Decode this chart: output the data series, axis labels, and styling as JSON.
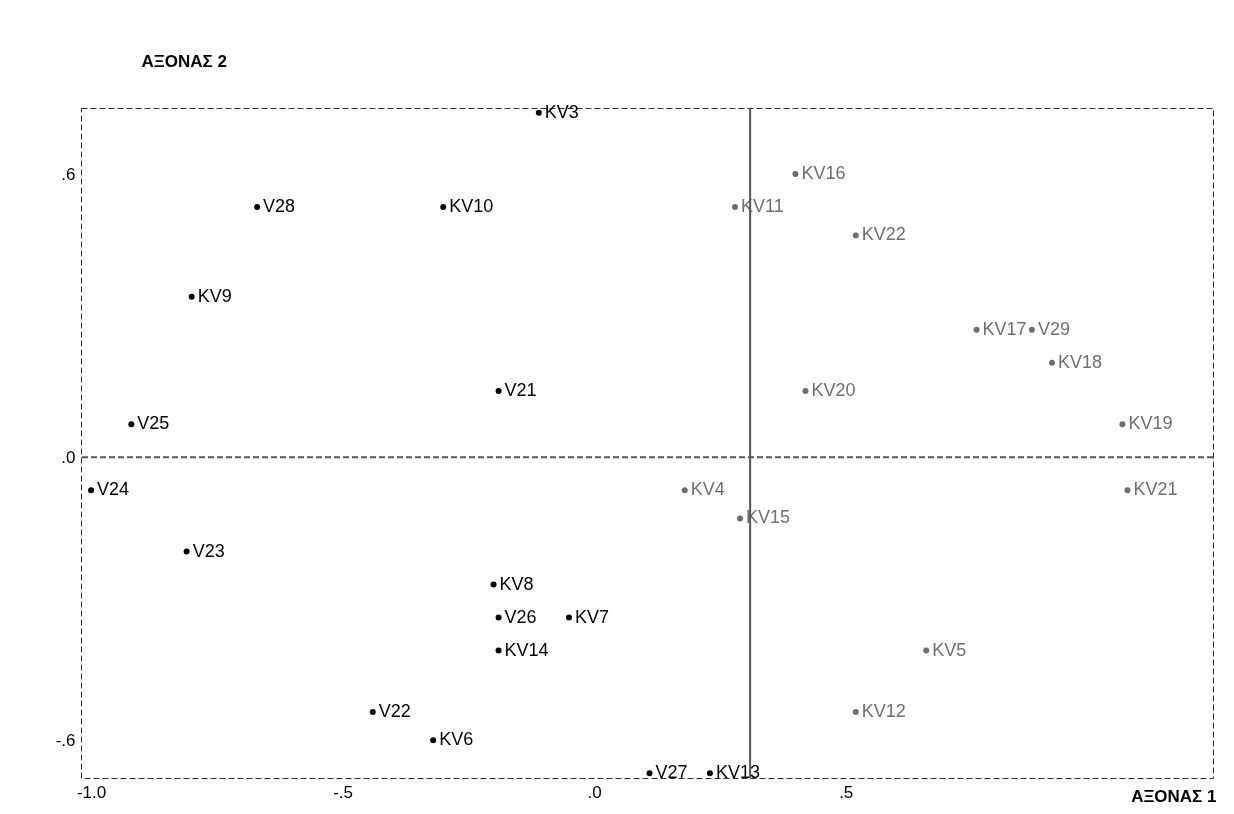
{
  "chart_data": {
    "type": "scatter",
    "xlabel": "ΑΞΟΝΑΣ 1",
    "ylabel": "ΑΞΟΝΑΣ 2",
    "marker": "circle",
    "grid": false,
    "xlim": [
      -1.02,
      1.23
    ],
    "ylim": [
      -0.68,
      0.74
    ],
    "xticks": [
      {
        "value": -1.0,
        "label": "-1.0"
      },
      {
        "value": -0.5,
        "label": "-.5"
      },
      {
        "value": 0,
        "label": ".0"
      },
      {
        "value": 0.5,
        "label": ".5"
      }
    ],
    "yticks": [
      {
        "value": -0.6,
        "label": "-.6"
      },
      {
        "value": 0,
        "label": ".0"
      },
      {
        "value": 0.6,
        "label": ".6"
      }
    ],
    "ref_lines": [
      {
        "axis": "y",
        "value": 0,
        "line_style": "dashed",
        "color": "#555555"
      },
      {
        "axis": "x",
        "value": 0.31,
        "line_style": "solid",
        "color": "#555555"
      }
    ],
    "series": [
      {
        "color": "#000000",
        "x": [
          -0.11,
          -0.67,
          -0.3,
          -0.8,
          -0.19,
          -0.92,
          -1.0,
          -0.81,
          -0.2,
          -0.19,
          -0.05,
          -0.19,
          -0.44,
          -0.32,
          0.11,
          0.23
        ],
        "values": [
          0.73,
          0.53,
          0.53,
          0.34,
          0.14,
          0.07,
          -0.07,
          -0.2,
          -0.27,
          -0.34,
          -0.34,
          -0.41,
          -0.54,
          -0.6,
          -0.67,
          -0.67
        ],
        "value_labels": [
          "KV3",
          "V28",
          "KV10",
          "KV9",
          "V21",
          "V25",
          "V24",
          "V23",
          "KV8",
          "V26",
          "KV7",
          "KV14",
          "V22",
          "KV6",
          "V27",
          "KV13"
        ]
      },
      {
        "color": "#6e6e6e",
        "x": [
          0.4,
          0.28,
          0.52,
          0.76,
          0.87,
          0.91,
          0.42,
          1.05,
          0.18,
          1.06,
          0.29,
          0.66,
          0.52
        ],
        "values": [
          0.6,
          0.53,
          0.47,
          0.27,
          0.27,
          0.2,
          0.14,
          0.07,
          -0.07,
          -0.07,
          -0.13,
          -0.41,
          -0.54
        ],
        "value_labels": [
          "KV16",
          "KV11",
          "KV22",
          "KV17",
          "V29",
          "KV18",
          "KV20",
          "KV19",
          "KV4",
          "KV21",
          "KV15",
          "KV5",
          "KV12"
        ]
      }
    ]
  }
}
